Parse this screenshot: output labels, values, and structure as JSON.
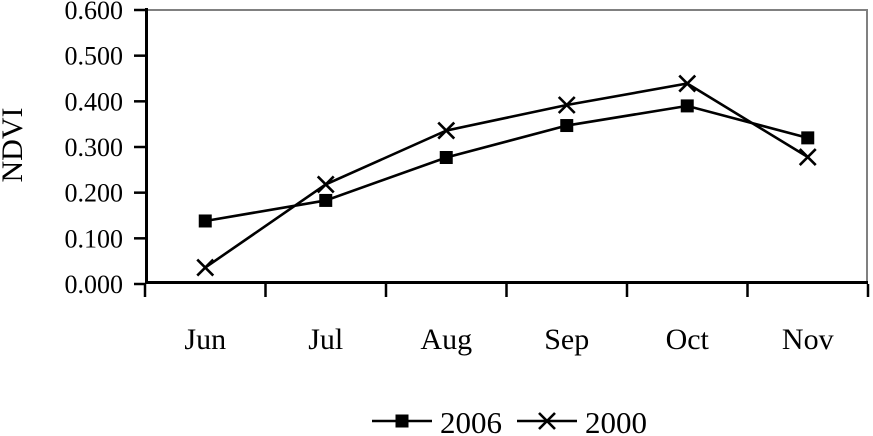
{
  "chart_data": {
    "type": "line",
    "title": "",
    "xlabel": "",
    "ylabel": "NDVI",
    "categories": [
      "Jun",
      "Jul",
      "Aug",
      "Sep",
      "Oct",
      "Nov"
    ],
    "series": [
      {
        "name": "2006",
        "marker": "square",
        "values": [
          0.138,
          0.183,
          0.277,
          0.347,
          0.39,
          0.32
        ]
      },
      {
        "name": "2000",
        "marker": "x",
        "values": [
          0.036,
          0.218,
          0.336,
          0.392,
          0.439,
          0.278
        ]
      }
    ],
    "ylim": [
      0.0,
      0.6
    ],
    "ytick_step": 0.1,
    "ytick_labels": [
      "0.000",
      "0.100",
      "0.200",
      "0.300",
      "0.400",
      "0.500",
      "0.600"
    ],
    "grid": false,
    "legend_position": "bottom-center",
    "line_color": "#000000",
    "axis_color": "#000000",
    "frame_color": "#808080",
    "background_color": "#ffffff"
  }
}
